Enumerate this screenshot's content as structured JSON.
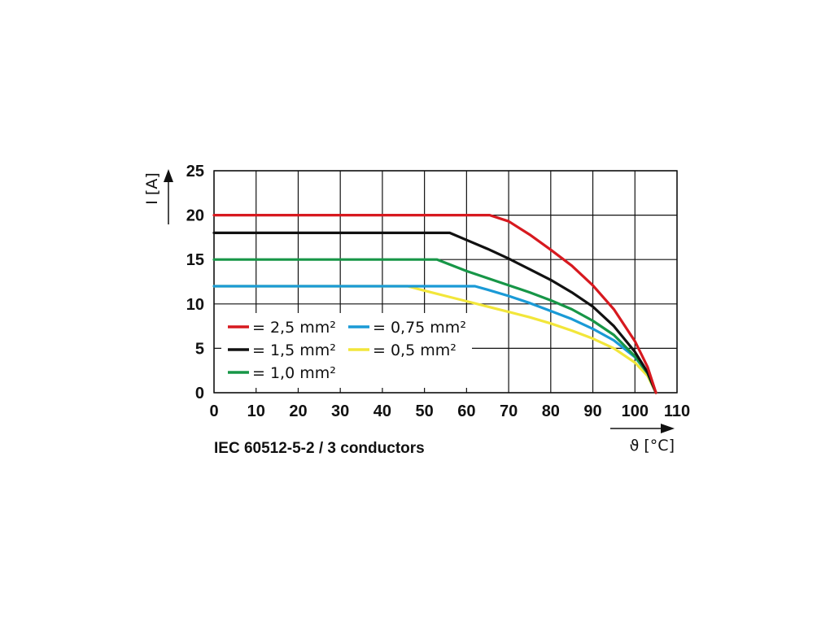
{
  "chart_data": {
    "type": "line",
    "title": "",
    "caption": "IEC 60512-5-2 / 3 conductors",
    "xlabel": "ϑ [°C]",
    "ylabel": "I [A]",
    "xlim": [
      0,
      110
    ],
    "ylim": [
      0,
      25
    ],
    "xticks": [
      0,
      10,
      20,
      30,
      40,
      50,
      60,
      70,
      80,
      90,
      100,
      110
    ],
    "yticks": [
      0,
      5,
      10,
      15,
      20,
      25
    ],
    "grid": true,
    "legend_position": "lower-left inside plot",
    "series": [
      {
        "name": "= 2,5 mm²",
        "color": "#d7191f",
        "x": [
          0,
          65.5,
          70,
          75,
          80,
          85,
          90,
          95,
          100,
          103,
          105
        ],
        "y": [
          20,
          20,
          19.3,
          17.8,
          16.1,
          14.3,
          12.1,
          9.4,
          5.8,
          2.9,
          0
        ]
      },
      {
        "name": "= 1,5 mm²",
        "color": "#111111",
        "x": [
          0,
          56,
          60,
          65,
          70,
          75,
          80,
          85,
          90,
          95,
          100,
          103,
          105
        ],
        "y": [
          18,
          18,
          17.2,
          16.2,
          15.1,
          13.9,
          12.7,
          11.3,
          9.7,
          7.5,
          4.6,
          2.3,
          0
        ]
      },
      {
        "name": "= 1,0 mm²",
        "color": "#179647",
        "x": [
          0,
          53,
          60,
          65,
          70,
          75,
          80,
          85,
          90,
          95,
          100,
          103,
          105
        ],
        "y": [
          15,
          15,
          13.7,
          12.9,
          12.1,
          11.3,
          10.4,
          9.4,
          8.1,
          6.5,
          4.1,
          2.2,
          0
        ]
      },
      {
        "name": "= 0,75 mm²",
        "color": "#1a9ad6",
        "x": [
          0,
          62,
          65,
          70,
          75,
          80,
          85,
          90,
          95,
          100,
          103,
          105
        ],
        "y": [
          12,
          12,
          11.6,
          10.9,
          10.1,
          9.2,
          8.3,
          7.2,
          5.9,
          4,
          2.2,
          0
        ]
      },
      {
        "name": "= 0,5 mm²",
        "color": "#f2e63a",
        "x": [
          0,
          46,
          50,
          55,
          60,
          65,
          70,
          75,
          80,
          85,
          90,
          95,
          100,
          103,
          105
        ],
        "y": [
          12,
          12,
          11.5,
          10.9,
          10.3,
          9.7,
          9.1,
          8.5,
          7.8,
          7,
          6.1,
          5,
          3.4,
          1.9,
          0
        ]
      }
    ]
  }
}
